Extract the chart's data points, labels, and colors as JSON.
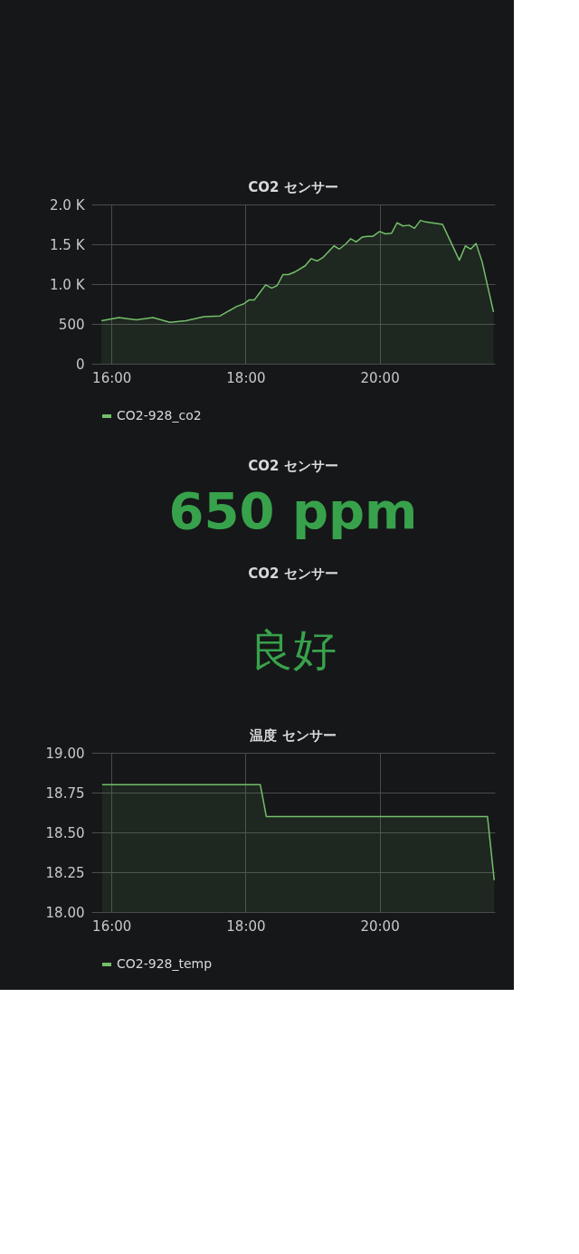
{
  "chart_data": [
    {
      "type": "area",
      "title": "CO2 センサー",
      "x": [
        15.85,
        16.11,
        16.37,
        16.62,
        16.87,
        17.11,
        17.38,
        17.62,
        17.87,
        17.97,
        18.05,
        18.13,
        18.22,
        18.3,
        18.39,
        18.47,
        18.56,
        18.64,
        18.73,
        18.89,
        18.98,
        19.07,
        19.15,
        19.24,
        19.32,
        19.4,
        19.49,
        19.57,
        19.65,
        19.74,
        19.82,
        19.9,
        20.0,
        20.09,
        20.18,
        20.26,
        20.35,
        20.44,
        20.52,
        20.61,
        20.69,
        20.94,
        21.19,
        21.28,
        21.36,
        21.44,
        21.53,
        21.7
      ],
      "series": [
        {
          "name": "CO2-928_co2",
          "color": "#73bf69",
          "values": [
            540,
            580,
            550,
            580,
            520,
            540,
            590,
            600,
            720,
            750,
            800,
            800,
            900,
            990,
            950,
            980,
            1120,
            1120,
            1150,
            1230,
            1320,
            1290,
            1330,
            1410,
            1480,
            1440,
            1500,
            1570,
            1530,
            1590,
            1600,
            1600,
            1660,
            1630,
            1640,
            1770,
            1730,
            1740,
            1700,
            1800,
            1780,
            1750,
            1300,
            1480,
            1440,
            1510,
            1280,
            650
          ]
        }
      ],
      "xlim": [
        15.7,
        21.72
      ],
      "xticks": [
        {
          "value": 16,
          "label": "16:00"
        },
        {
          "value": 18,
          "label": "18:00"
        },
        {
          "value": 20,
          "label": "20:00"
        }
      ],
      "ylim": [
        0,
        2000
      ],
      "yticks": [
        0,
        500,
        {
          "value": 1000,
          "label": "1.0 K"
        },
        {
          "value": 1500,
          "label": "1.5 K"
        },
        {
          "value": 2000,
          "label": "2.0 K"
        }
      ],
      "grid": true,
      "legend": "bottom"
    },
    {
      "type": "other",
      "title": "CO2 センサー",
      "annotations": [
        "650 ppm"
      ],
      "colors": [
        "#37a24b"
      ]
    },
    {
      "type": "other",
      "title": "CO2 センサー",
      "annotations": [
        "良好"
      ],
      "colors": [
        "#37a24b"
      ]
    },
    {
      "type": "area",
      "title": "温度 センサー",
      "x": [
        15.86,
        18.22,
        18.31,
        21.61,
        21.71
      ],
      "series": [
        {
          "name": "CO2-928_temp",
          "color": "#73bf69",
          "values": [
            18.8,
            18.8,
            18.6,
            18.6,
            18.2
          ]
        }
      ],
      "xlim": [
        15.7,
        21.72
      ],
      "xticks": [
        {
          "value": 16,
          "label": "16:00"
        },
        {
          "value": 18,
          "label": "18:00"
        },
        {
          "value": 20,
          "label": "20:00"
        }
      ],
      "ylim": [
        18,
        19
      ],
      "yticks": [
        {
          "value": 18,
          "label": "18.00"
        },
        {
          "value": 18.25,
          "label": "18.25"
        },
        {
          "value": 18.5,
          "label": "18.50"
        },
        {
          "value": 18.75,
          "label": "18.75"
        },
        {
          "value": 19,
          "label": "19.00"
        }
      ],
      "grid": true,
      "legend": "bottom"
    }
  ]
}
